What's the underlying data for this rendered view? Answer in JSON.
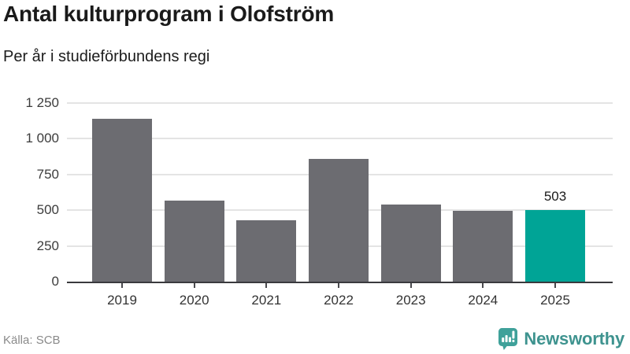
{
  "title": "Antal kulturprogram i Olofström",
  "subtitle": "Per år i studieförbundens regi",
  "chart_data": {
    "type": "bar",
    "categories": [
      "2019",
      "2020",
      "2021",
      "2022",
      "2023",
      "2024",
      "2025"
    ],
    "values": [
      1140,
      565,
      432,
      860,
      541,
      495,
      503
    ],
    "title": "Antal kulturprogram i Olofström",
    "subtitle": "Per år i studieförbundens regi",
    "xlabel": "",
    "ylabel": "",
    "ylim": [
      0,
      1250
    ],
    "ytick_values": [
      0,
      250,
      500,
      750,
      1000,
      1250
    ],
    "ytick_labels": [
      "0",
      "250",
      "500",
      "750",
      "1 000",
      "1 250"
    ],
    "grid": true,
    "legend": "none",
    "annotation": {
      "index": 6,
      "text": "503"
    },
    "colors": {
      "bar": "#6c6c71",
      "highlight": "#00a496",
      "gridline": "#e4e4e4",
      "axis": "#3a3a3e"
    },
    "highlight_index": 6
  },
  "footer": {
    "source": "Källa: SCB",
    "brand": "Newsworthy"
  }
}
